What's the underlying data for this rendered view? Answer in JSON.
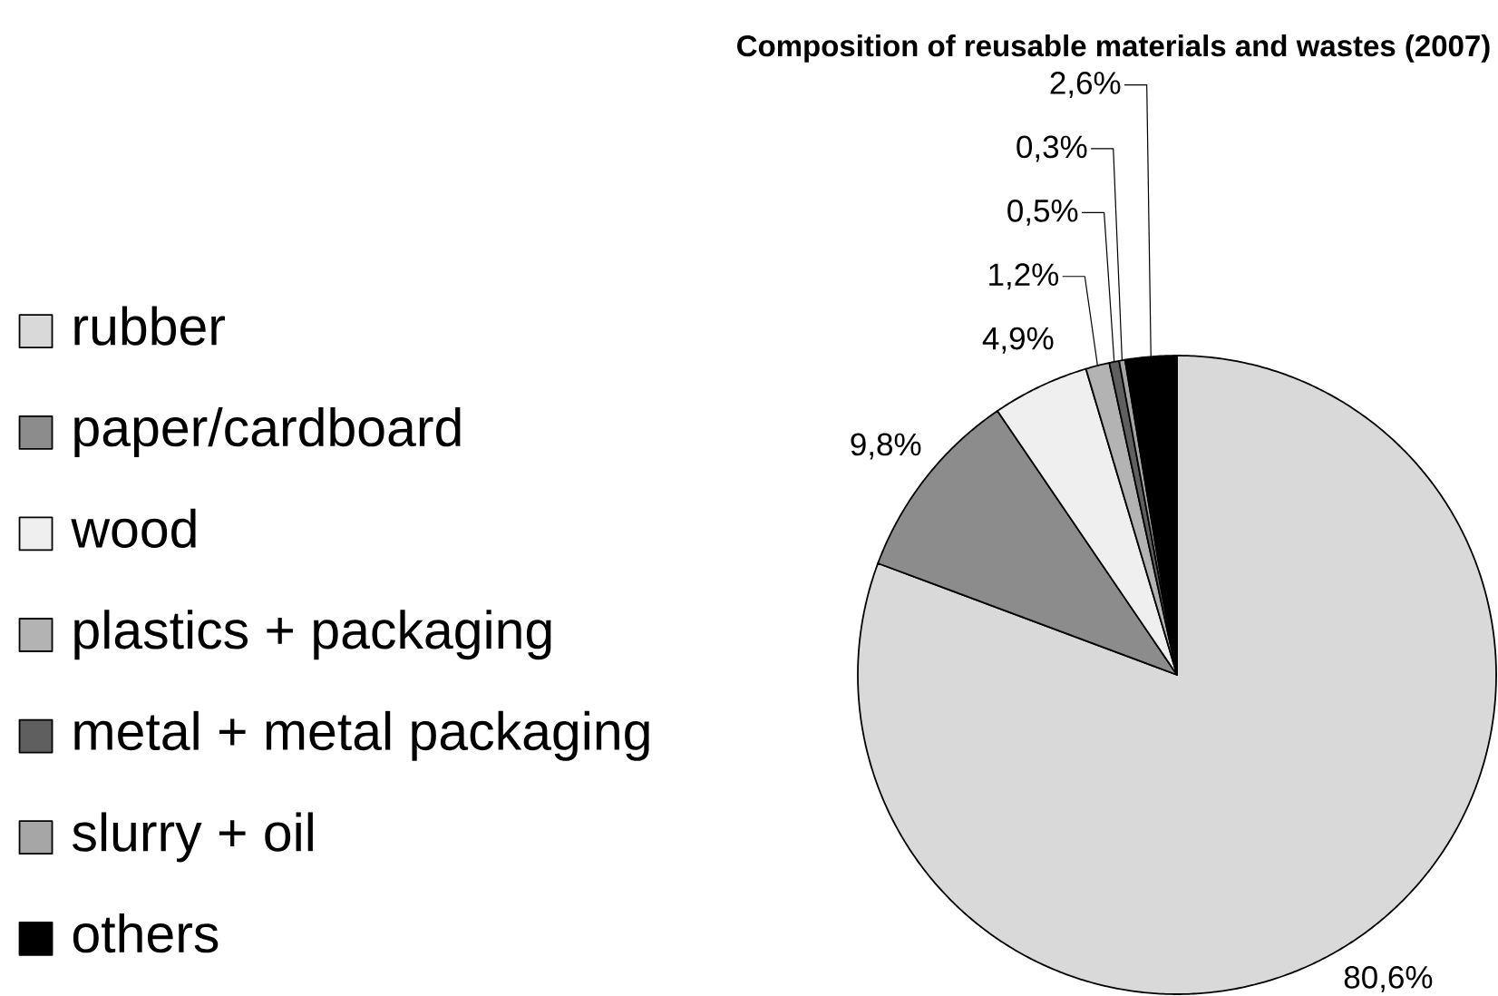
{
  "chart_data": {
    "type": "pie",
    "title": "Composition of reusable materials and wastes (2007)",
    "categories": [
      "rubber",
      "paper/cardboard",
      "wood",
      "plastics + packaging",
      "metal + metal packaging",
      "slurry + oil",
      "others"
    ],
    "values": [
      80.6,
      9.8,
      4.9,
      1.2,
      0.5,
      0.3,
      2.6
    ],
    "value_labels": [
      "80,6%",
      "9,8%",
      "4,9%",
      "1,2%",
      "0,5%",
      "0,3%",
      "2,6%"
    ],
    "colors": [
      "#d9d9d9",
      "#8c8c8c",
      "#efefef",
      "#b3b3b3",
      "#5f5f5f",
      "#a6a6a6",
      "#000000"
    ],
    "legend": "left"
  }
}
